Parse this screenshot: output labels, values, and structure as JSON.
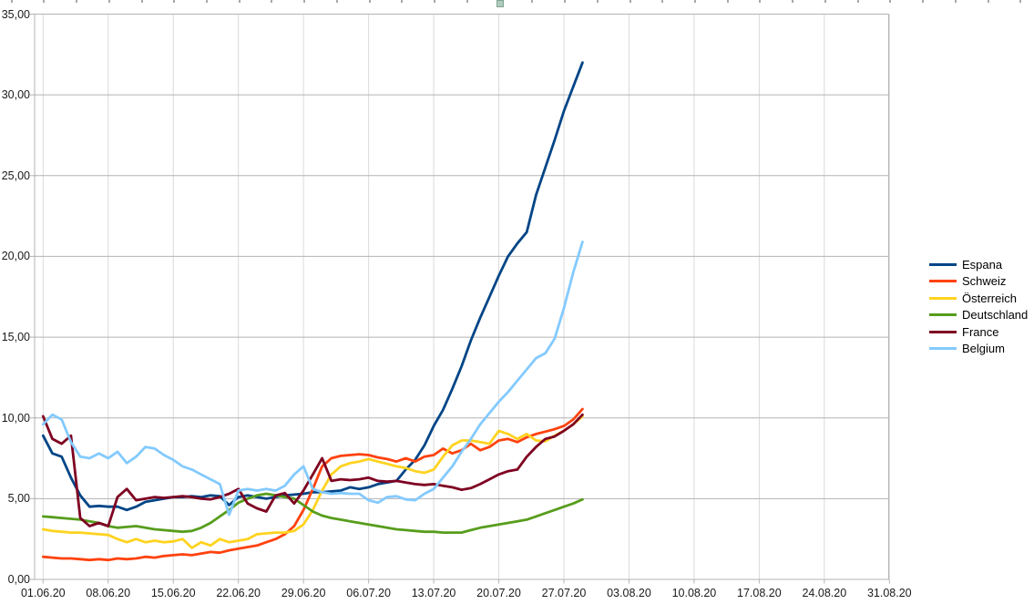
{
  "selection": {
    "handle_color": "#aecbbc"
  },
  "chart_data": {
    "type": "line",
    "title": "",
    "grid": true,
    "legend_position": "right",
    "y_axis": {
      "min": 0,
      "max": 35,
      "step": 5,
      "tick_labels": [
        "0,00",
        "5,00",
        "10,00",
        "15,00",
        "20,00",
        "25,00",
        "30,00",
        "35,00"
      ]
    },
    "x_axis": {
      "tick_labels": [
        "01.06.20",
        "08.06.20",
        "15.06.20",
        "22.06.20",
        "29.06.20",
        "06.07.20",
        "13.07.20",
        "20.07.20",
        "27.07.20",
        "03.08.20",
        "10.08.20",
        "17.08.20",
        "24.08.20",
        "31.08.20"
      ],
      "days_per_tick": 7,
      "total_days_span": 91
    },
    "series": [
      {
        "name": "Espana",
        "color": "#004586",
        "values": [
          8.9,
          7.8,
          7.6,
          6.3,
          5.2,
          4.5,
          4.55,
          4.5,
          4.5,
          4.3,
          4.5,
          4.8,
          4.9,
          5.0,
          5.1,
          5.1,
          5.15,
          5.1,
          5.2,
          5.15,
          4.6,
          5.1,
          5.2,
          5.1,
          5.0,
          5.1,
          5.2,
          5.25,
          5.3,
          5.4,
          5.4,
          5.45,
          5.5,
          5.7,
          5.6,
          5.7,
          5.9,
          6.0,
          6.1,
          6.8,
          7.4,
          8.3,
          9.5,
          10.5,
          11.8,
          13.2,
          14.8,
          16.2,
          17.5,
          18.8,
          20.0,
          20.8,
          21.5,
          23.8,
          25.5,
          27.2,
          29.0,
          30.5,
          32.0
        ]
      },
      {
        "name": "Schweiz",
        "color": "#FF420E",
        "values": [
          1.4,
          1.35,
          1.3,
          1.3,
          1.25,
          1.2,
          1.25,
          1.2,
          1.3,
          1.25,
          1.3,
          1.4,
          1.35,
          1.45,
          1.5,
          1.55,
          1.5,
          1.6,
          1.7,
          1.65,
          1.8,
          1.9,
          2.0,
          2.1,
          2.3,
          2.5,
          2.8,
          3.3,
          4.3,
          5.6,
          7.0,
          7.5,
          7.65,
          7.7,
          7.75,
          7.7,
          7.55,
          7.45,
          7.3,
          7.5,
          7.3,
          7.6,
          7.7,
          8.1,
          7.8,
          8.0,
          8.4,
          8.0,
          8.2,
          8.6,
          8.7,
          8.5,
          8.8,
          9.0,
          9.15,
          9.3,
          9.5,
          9.9,
          10.55
        ]
      },
      {
        "name": "Österreich",
        "color": "#FFD320",
        "values": [
          3.1,
          3.0,
          2.95,
          2.9,
          2.9,
          2.85,
          2.8,
          2.75,
          2.5,
          2.3,
          2.5,
          2.3,
          2.4,
          2.3,
          2.35,
          2.5,
          1.95,
          2.3,
          2.1,
          2.5,
          2.3,
          2.4,
          2.5,
          2.8,
          2.85,
          2.9,
          2.9,
          3.0,
          3.4,
          4.3,
          5.5,
          6.5,
          7.0,
          7.2,
          7.3,
          7.45,
          7.3,
          7.15,
          7.0,
          6.9,
          6.7,
          6.6,
          6.8,
          7.6,
          8.3,
          8.6,
          8.6,
          8.5,
          8.4,
          9.2,
          9.0,
          8.7,
          9.0,
          8.6,
          8.55,
          8.9,
          9.2,
          9.6,
          10.1
        ]
      },
      {
        "name": "Deutschland",
        "color": "#579D1C",
        "values": [
          3.9,
          3.85,
          3.8,
          3.75,
          3.7,
          3.6,
          3.5,
          3.3,
          3.2,
          3.25,
          3.3,
          3.2,
          3.1,
          3.05,
          3.0,
          2.95,
          3.0,
          3.2,
          3.5,
          3.9,
          4.3,
          4.75,
          5.0,
          5.2,
          5.3,
          5.2,
          5.1,
          5.0,
          4.6,
          4.2,
          3.95,
          3.8,
          3.7,
          3.6,
          3.5,
          3.4,
          3.3,
          3.2,
          3.1,
          3.05,
          3.0,
          2.95,
          2.95,
          2.9,
          2.9,
          2.9,
          3.05,
          3.2,
          3.3,
          3.4,
          3.5,
          3.6,
          3.7,
          3.9,
          4.1,
          4.3,
          4.5,
          4.7,
          4.95
        ]
      },
      {
        "name": "France",
        "color": "#7E0021",
        "values": [
          10.1,
          8.7,
          8.4,
          8.9,
          3.8,
          3.3,
          3.5,
          3.3,
          5.1,
          5.6,
          4.9,
          5.0,
          5.1,
          5.05,
          5.1,
          5.15,
          5.1,
          5.0,
          4.95,
          5.1,
          5.3,
          5.6,
          4.7,
          4.4,
          4.2,
          5.2,
          5.35,
          4.7,
          5.5,
          6.5,
          7.5,
          6.1,
          6.2,
          6.15,
          6.2,
          6.3,
          6.1,
          6.05,
          6.1,
          6.0,
          5.9,
          5.85,
          5.9,
          5.8,
          5.7,
          5.55,
          5.65,
          5.9,
          6.2,
          6.5,
          6.7,
          6.8,
          7.6,
          8.2,
          8.7,
          8.85,
          9.2,
          9.6,
          10.2
        ]
      },
      {
        "name": "Belgium",
        "color": "#83CAFF",
        "values": [
          9.6,
          10.2,
          9.9,
          8.5,
          7.6,
          7.5,
          7.8,
          7.5,
          7.9,
          7.2,
          7.6,
          8.2,
          8.1,
          7.7,
          7.4,
          7.0,
          6.8,
          6.5,
          6.2,
          5.9,
          4.0,
          5.5,
          5.6,
          5.5,
          5.6,
          5.5,
          5.8,
          6.5,
          7.0,
          5.6,
          5.4,
          5.3,
          5.35,
          5.3,
          5.3,
          4.9,
          4.75,
          5.1,
          5.15,
          4.95,
          4.9,
          5.3,
          5.6,
          6.3,
          7.0,
          7.9,
          8.7,
          9.6,
          10.3,
          11.0,
          11.6,
          12.3,
          13.0,
          13.7,
          14.0,
          14.9,
          16.8,
          19.0,
          20.9
        ]
      }
    ]
  }
}
